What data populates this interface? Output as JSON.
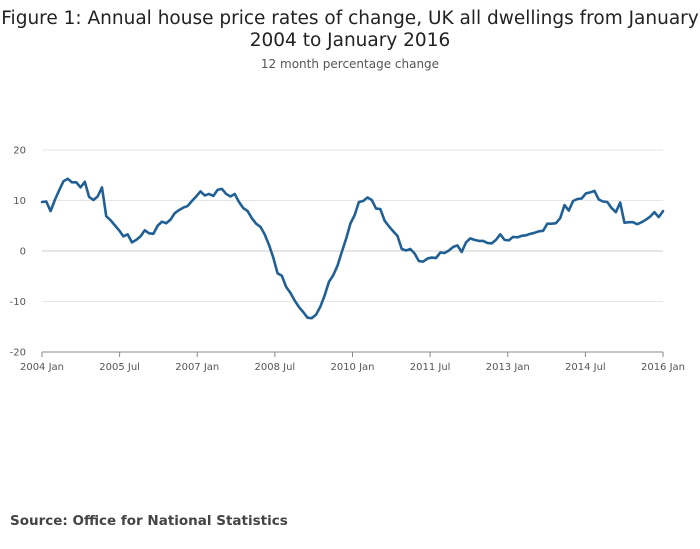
{
  "header": {
    "title_line1": "Figure 1: Annual house price rates of change, UK all dwellings from January",
    "title_line2": "2004 to January 2016",
    "subtitle": "12 month percentage change"
  },
  "footer": {
    "source": "Source: Office for National Statistics"
  },
  "chart_data": {
    "type": "line",
    "title": "Figure 1: Annual house price rates of change, UK all dwellings from January 2004 to January 2016",
    "subtitle": "12 month percentage change",
    "xlabel": "",
    "ylabel": "",
    "ylim": [
      -20,
      20
    ],
    "yticks": [
      20,
      10,
      0,
      -10,
      -20
    ],
    "xtick_labels": [
      "2004 Jan",
      "2005 Jul",
      "2007 Jan",
      "2008 Jul",
      "2010 Jan",
      "2011 Jul",
      "2013 Jan",
      "2014 Jul",
      "2016 Jan"
    ],
    "grid": true,
    "line_color": "#206095",
    "series": [
      {
        "values": [
          9.7,
          9.8,
          7.9,
          10.1,
          12.0,
          13.8,
          14.3,
          13.6,
          13.6,
          12.6,
          13.7,
          10.7,
          10.1,
          10.8,
          12.6,
          6.9,
          6.1,
          5.1,
          4.1,
          2.9,
          3.3,
          1.7,
          2.2,
          2.9,
          4.1,
          3.5,
          3.4,
          5.0,
          5.8,
          5.5,
          6.2,
          7.5,
          8.1,
          8.6,
          8.9,
          9.9,
          10.8,
          11.8,
          11.0,
          11.3,
          10.9,
          12.1,
          12.3,
          11.3,
          10.8,
          11.3,
          9.7,
          8.5,
          7.9,
          6.5,
          5.4,
          4.8,
          3.3,
          1.2,
          -1.3,
          -4.4,
          -4.9,
          -7.1,
          -8.3,
          -9.8,
          -11.1,
          -12.1,
          -13.2,
          -13.3,
          -12.6,
          -11.0,
          -8.8,
          -6.1,
          -4.8,
          -2.9,
          -0.2,
          2.4,
          5.4,
          7.1,
          9.7,
          9.9,
          10.6,
          10.1,
          8.4,
          8.3,
          6.0,
          4.9,
          3.9,
          3.0,
          0.4,
          0.1,
          0.4,
          -0.5,
          -2.0,
          -2.1,
          -1.5,
          -1.3,
          -1.4,
          -0.3,
          -0.4,
          0.1,
          0.8,
          1.1,
          -0.2,
          1.7,
          2.5,
          2.2,
          2.0,
          2.0,
          1.6,
          1.5,
          2.2,
          3.3,
          2.2,
          2.1,
          2.8,
          2.7,
          3.0,
          3.1,
          3.4,
          3.6,
          3.9,
          4.0,
          5.4,
          5.4,
          5.5,
          6.5,
          9.1,
          8.0,
          9.9,
          10.3,
          10.4,
          11.4,
          11.6,
          11.9,
          10.2,
          9.8,
          9.7,
          8.5,
          7.7,
          9.6,
          5.6,
          5.7,
          5.7,
          5.3,
          5.7,
          6.2,
          6.8,
          7.7,
          6.7,
          7.9
        ]
      }
    ]
  }
}
